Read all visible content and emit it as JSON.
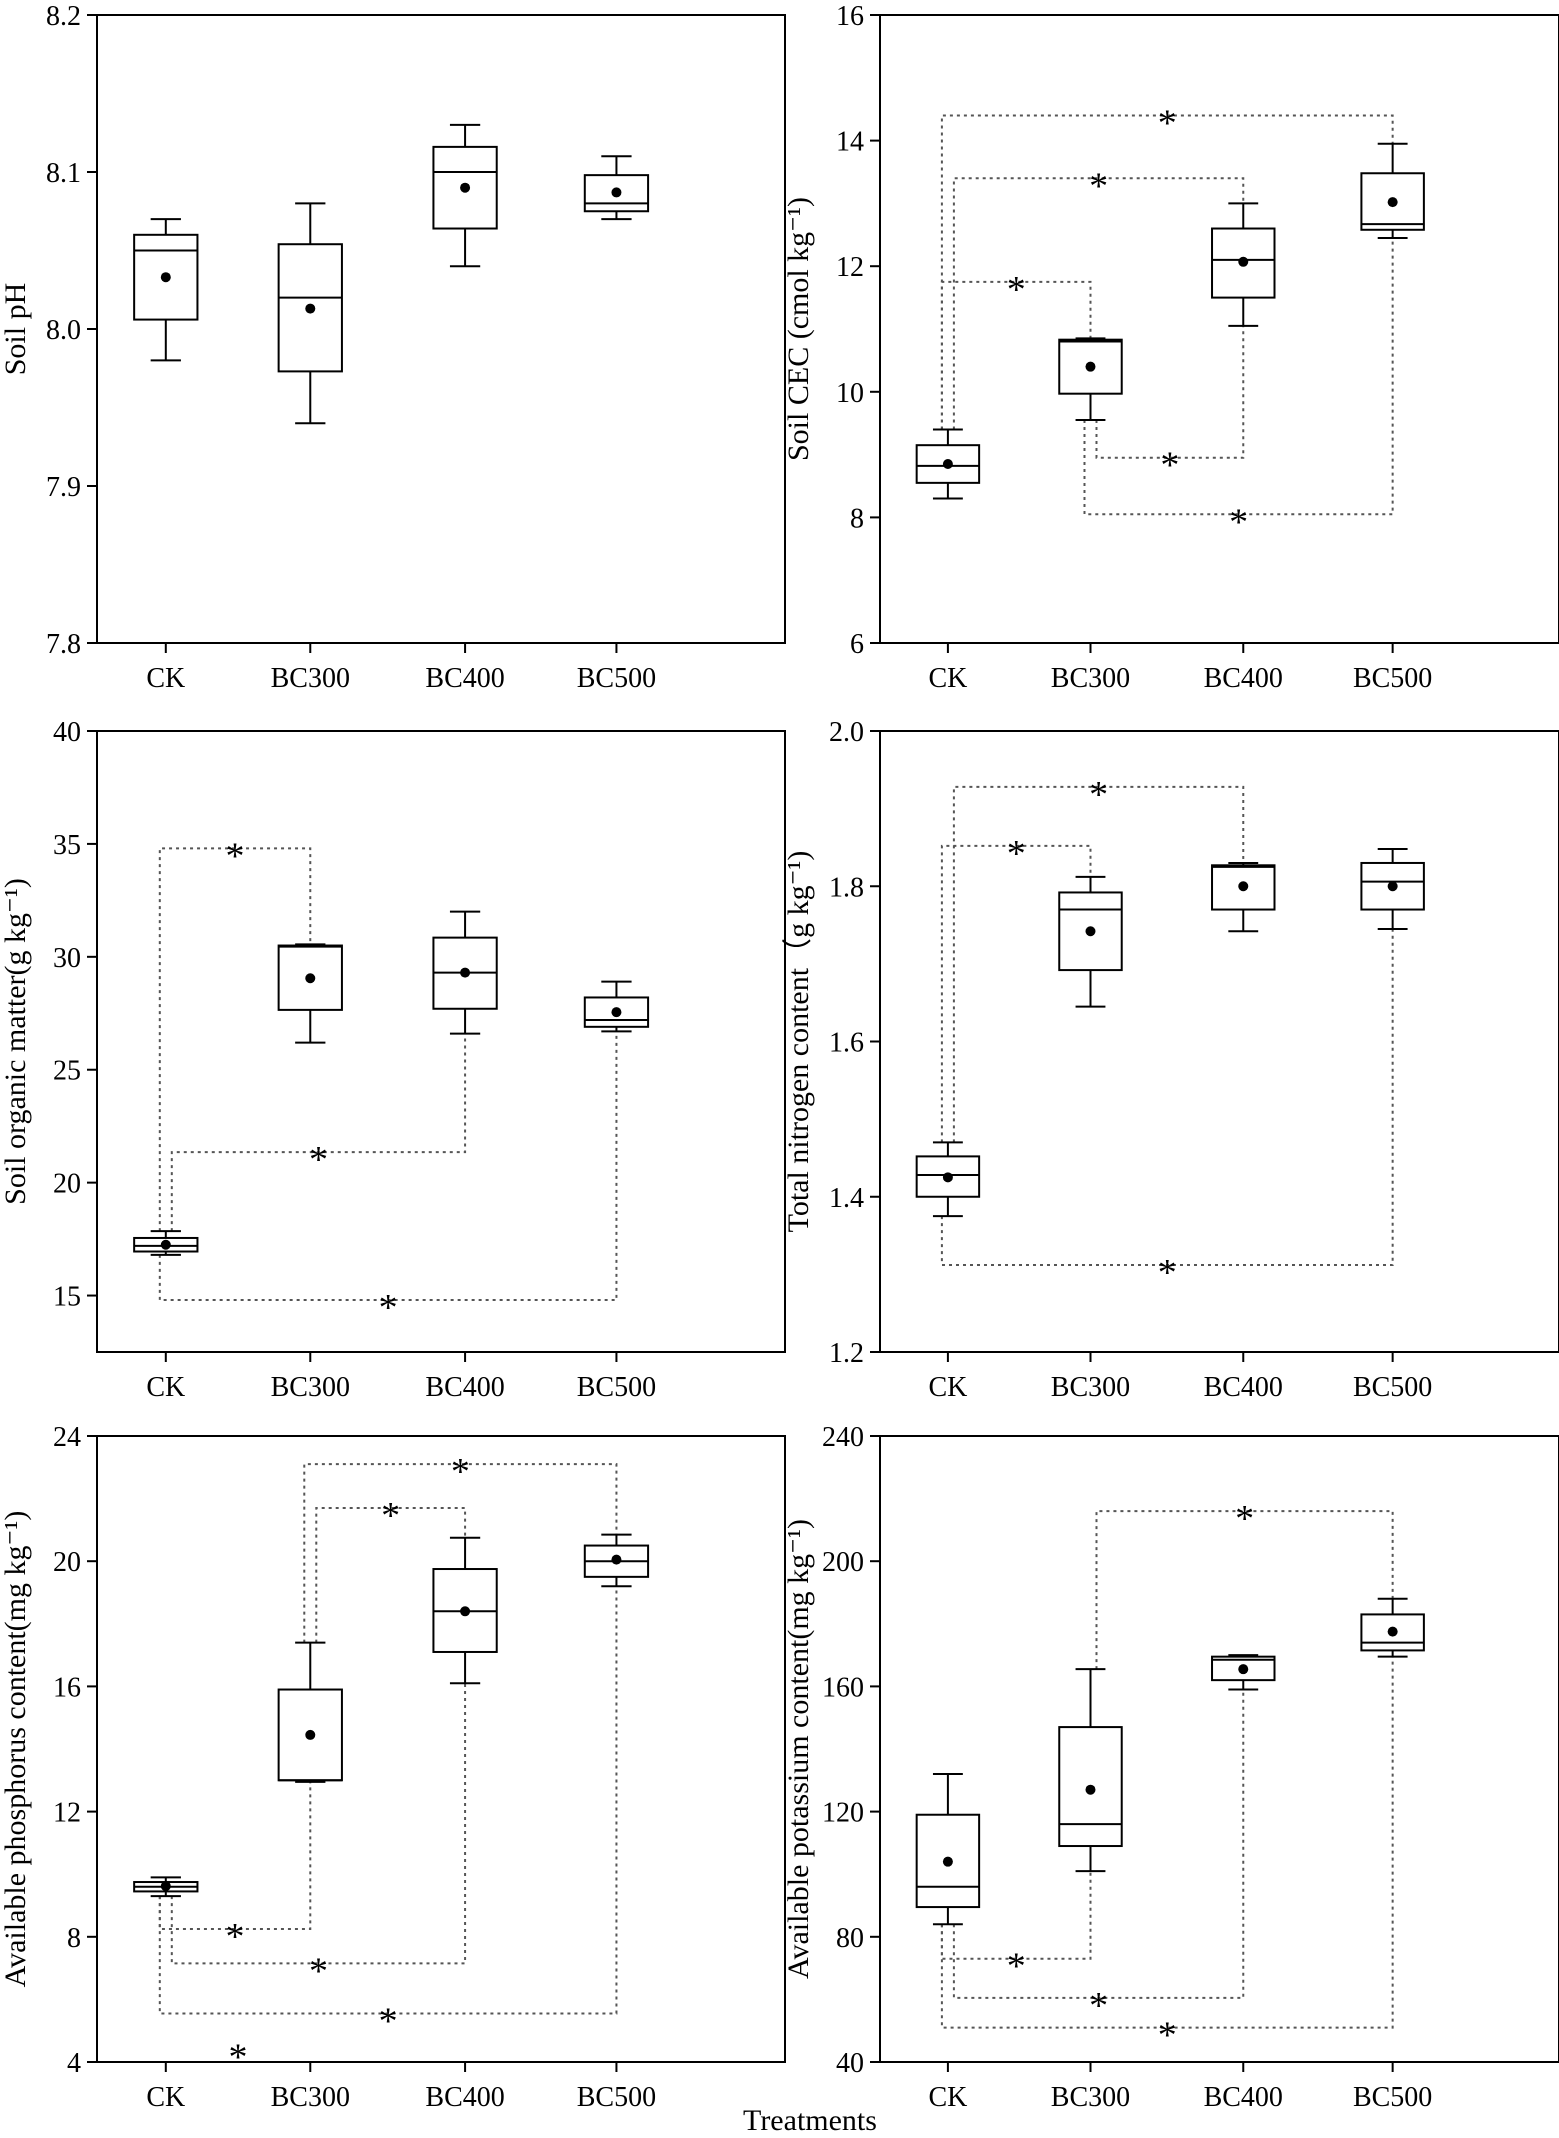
{
  "figure": {
    "x_title": "Treatments"
  },
  "chart_data": [
    {
      "type": "box",
      "ylabel": "Soil pH",
      "ylim": [
        7.8,
        8.2
      ],
      "yticks": [
        "7.8",
        "7.9",
        "8.0",
        "8.1",
        "8.2"
      ],
      "categories": [
        "CK",
        "BC300",
        "BC400",
        "BC500"
      ],
      "boxes": [
        {
          "category": "CK",
          "min": 7.98,
          "q1": 8.006,
          "median": 8.05,
          "q3": 8.06,
          "max": 8.07,
          "mean": 8.033
        },
        {
          "category": "BC300",
          "min": 7.94,
          "q1": 7.973,
          "median": 8.02,
          "q3": 8.054,
          "max": 8.08,
          "mean": 8.013
        },
        {
          "category": "BC400",
          "min": 8.04,
          "q1": 8.064,
          "median": 8.1,
          "q3": 8.116,
          "max": 8.13,
          "mean": 8.09
        },
        {
          "category": "BC500",
          "min": 8.07,
          "q1": 8.075,
          "median": 8.08,
          "q3": 8.098,
          "max": 8.11,
          "mean": 8.087
        }
      ],
      "significance": []
    },
    {
      "type": "box",
      "ylabel": "Soil CEC (cmol kg⁻¹)",
      "ylim": [
        6,
        16
      ],
      "yticks": [
        "6",
        "8",
        "10",
        "12",
        "14",
        "16"
      ],
      "categories": [
        "CK",
        "BC300",
        "BC400",
        "BC500"
      ],
      "boxes": [
        {
          "category": "CK",
          "min": 8.3,
          "q1": 8.55,
          "median": 8.82,
          "q3": 9.15,
          "max": 9.4,
          "mean": 8.85
        },
        {
          "category": "BC300",
          "min": 9.55,
          "q1": 9.97,
          "median": 10.8,
          "q3": 10.83,
          "max": 10.85,
          "mean": 10.4
        },
        {
          "category": "BC400",
          "min": 11.05,
          "q1": 11.5,
          "median": 12.1,
          "q3": 12.6,
          "max": 13.0,
          "mean": 12.07
        },
        {
          "category": "BC500",
          "min": 12.45,
          "q1": 12.58,
          "median": 12.67,
          "q3": 13.48,
          "max": 13.95,
          "mean": 13.02
        }
      ],
      "significance": [
        {
          "from": "CK",
          "to": "BC300",
          "level": 11.75,
          "label": "*"
        },
        {
          "from": "CK",
          "to": "BC400",
          "level": 13.4,
          "label": "*"
        },
        {
          "from": "CK",
          "to": "BC500",
          "level": 14.4,
          "label": "*"
        },
        {
          "from": "BC300",
          "to": "BC400",
          "level": 8.95,
          "label": "*"
        },
        {
          "from": "BC300",
          "to": "BC500",
          "level": 8.05,
          "label": "*"
        }
      ]
    },
    {
      "type": "box",
      "ylabel": "Soil organic matter(g kg⁻¹)",
      "ylim": [
        12.5,
        40
      ],
      "yticks": [
        "15",
        "20",
        "25",
        "30",
        "35",
        "40"
      ],
      "categories": [
        "CK",
        "BC300",
        "BC400",
        "BC500"
      ],
      "boxes": [
        {
          "category": "CK",
          "min": 16.8,
          "q1": 16.95,
          "median": 17.2,
          "q3": 17.55,
          "max": 17.85,
          "mean": 17.25
        },
        {
          "category": "BC300",
          "min": 26.2,
          "q1": 27.65,
          "median": 30.45,
          "q3": 30.5,
          "max": 30.55,
          "mean": 29.05
        },
        {
          "category": "BC400",
          "min": 26.6,
          "q1": 27.7,
          "median": 29.3,
          "q3": 30.85,
          "max": 32.0,
          "mean": 29.3
        },
        {
          "category": "BC500",
          "min": 26.7,
          "q1": 26.9,
          "median": 27.2,
          "q3": 28.2,
          "max": 28.9,
          "mean": 27.55
        }
      ],
      "significance": [
        {
          "from": "CK",
          "to": "BC300",
          "level": 34.8,
          "label": "*"
        },
        {
          "from": "CK",
          "to": "BC400",
          "level": 21.35,
          "label": "*"
        },
        {
          "from": "CK",
          "to": "BC500",
          "level": 14.8,
          "label": "*"
        }
      ]
    },
    {
      "type": "box",
      "ylabel": "Total nitrogen content（g kg⁻¹)",
      "ylim": [
        1.2,
        2.0
      ],
      "yticks": [
        "1.2",
        "1.4",
        "1.6",
        "1.8",
        "2.0"
      ],
      "categories": [
        "CK",
        "BC300",
        "BC400",
        "BC500"
      ],
      "boxes": [
        {
          "category": "CK",
          "min": 1.375,
          "q1": 1.4,
          "median": 1.428,
          "q3": 1.452,
          "max": 1.47,
          "mean": 1.425
        },
        {
          "category": "BC300",
          "min": 1.645,
          "q1": 1.692,
          "median": 1.77,
          "q3": 1.792,
          "max": 1.812,
          "mean": 1.742
        },
        {
          "category": "BC400",
          "min": 1.742,
          "q1": 1.77,
          "median": 1.825,
          "q3": 1.827,
          "max": 1.83,
          "mean": 1.8
        },
        {
          "category": "BC500",
          "min": 1.745,
          "q1": 1.77,
          "median": 1.806,
          "q3": 1.83,
          "max": 1.848,
          "mean": 1.8
        }
      ],
      "significance": [
        {
          "from": "CK",
          "to": "BC300",
          "level": 1.852,
          "label": "*"
        },
        {
          "from": "CK",
          "to": "BC400",
          "level": 1.928,
          "label": "*"
        },
        {
          "from": "CK",
          "to": "BC500",
          "level": 1.312,
          "label": "*"
        }
      ]
    },
    {
      "type": "box",
      "ylabel": "Available phosphorus content(mg kg⁻¹)",
      "ylim": [
        4,
        24
      ],
      "yticks": [
        "4",
        "8",
        "12",
        "16",
        "20",
        "24"
      ],
      "categories": [
        "CK",
        "BC300",
        "BC400",
        "BC500"
      ],
      "boxes": [
        {
          "category": "CK",
          "min": 9.3,
          "q1": 9.45,
          "median": 9.6,
          "q3": 9.75,
          "max": 9.9,
          "mean": 9.62
        },
        {
          "category": "BC300",
          "min": 12.95,
          "q1": 13.0,
          "median": 13.0,
          "q3": 15.9,
          "max": 17.4,
          "mean": 14.45
        },
        {
          "category": "BC400",
          "min": 16.1,
          "q1": 17.1,
          "median": 18.4,
          "q3": 19.75,
          "max": 20.75,
          "mean": 18.4
        },
        {
          "category": "BC500",
          "min": 19.2,
          "q1": 19.5,
          "median": 20.0,
          "q3": 20.5,
          "max": 20.85,
          "mean": 20.05
        }
      ],
      "significance": [
        {
          "from": "CK",
          "to": "BC300",
          "level": 8.25,
          "label": "*"
        },
        {
          "from": "CK",
          "to": "BC400",
          "level": 7.15,
          "label": "*"
        },
        {
          "from": "CK",
          "to": "BC500",
          "level": 5.55,
          "label": "*"
        },
        {
          "from": "BC300",
          "to": "BC400",
          "level": 21.7,
          "label": "*"
        },
        {
          "from": "BC300",
          "to": "BC500",
          "level": 23.1,
          "label": "*"
        }
      ],
      "extra_marks": [
        {
          "label": "*",
          "x_between": [
            "CK",
            "BC300"
          ],
          "y": 4.4
        }
      ]
    },
    {
      "type": "box",
      "ylabel": "Available potassium content(mg kg⁻¹)",
      "ylim": [
        40,
        240
      ],
      "yticks": [
        "40",
        "80",
        "120",
        "160",
        "200",
        "240"
      ],
      "categories": [
        "CK",
        "BC300",
        "BC400",
        "BC500"
      ],
      "boxes": [
        {
          "category": "CK",
          "min": 84,
          "q1": 89.5,
          "median": 96,
          "q3": 119,
          "max": 132,
          "mean": 104
        },
        {
          "category": "BC300",
          "min": 101,
          "q1": 109,
          "median": 116,
          "q3": 147,
          "max": 165.5,
          "mean": 127
        },
        {
          "category": "BC400",
          "min": 159,
          "q1": 162,
          "median": 168.5,
          "q3": 169.5,
          "max": 170,
          "mean": 165.5
        },
        {
          "category": "BC500",
          "min": 169.5,
          "q1": 171.5,
          "median": 174,
          "q3": 183,
          "max": 188,
          "mean": 177.5
        }
      ],
      "significance": [
        {
          "from": "CK",
          "to": "BC300",
          "level": 73,
          "label": "*"
        },
        {
          "from": "CK",
          "to": "BC400",
          "level": 60.5,
          "label": "*"
        },
        {
          "from": "CK",
          "to": "BC500",
          "level": 51,
          "label": "*"
        },
        {
          "from": "BC300",
          "to": "BC500",
          "level": 216,
          "label": "*"
        }
      ]
    }
  ]
}
